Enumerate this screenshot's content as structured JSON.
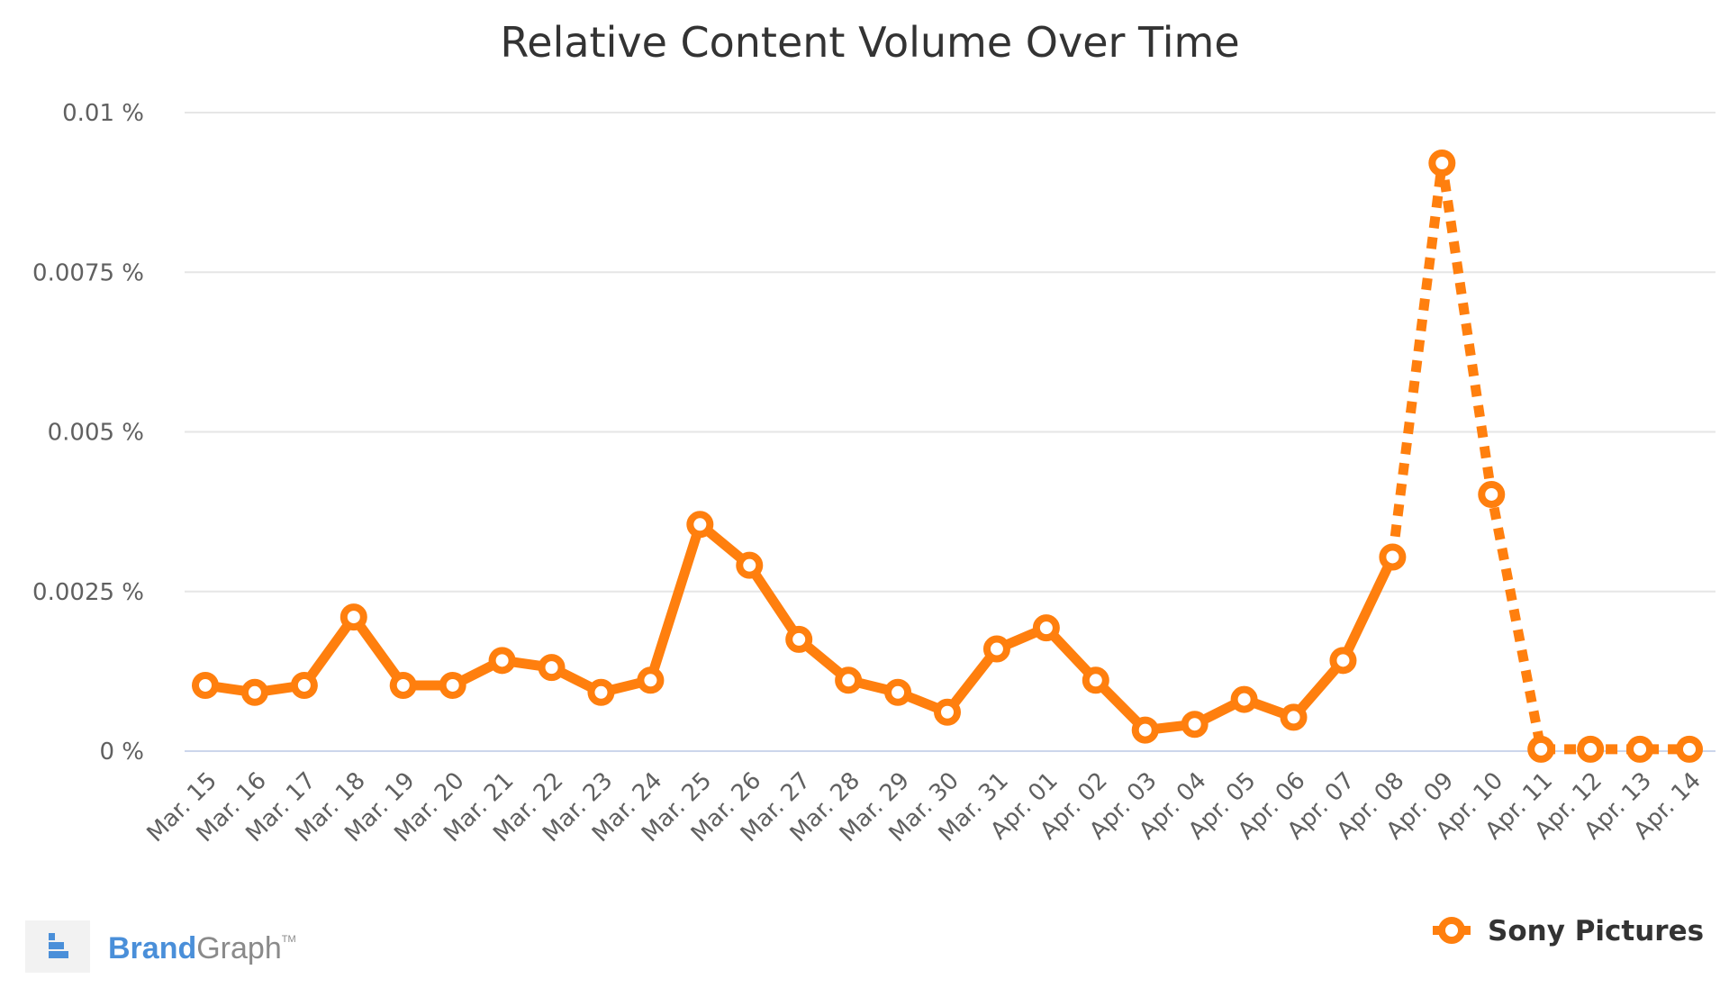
{
  "chart_data": {
    "type": "line",
    "title": "Relative Content Volume Over Time",
    "xlabel": "",
    "ylabel": "",
    "categories": [
      "Mar. 15",
      "Mar. 16",
      "Mar. 17",
      "Mar. 18",
      "Mar. 19",
      "Mar. 20",
      "Mar. 21",
      "Mar. 22",
      "Mar. 23",
      "Mar. 24",
      "Mar. 25",
      "Mar. 26",
      "Mar. 27",
      "Mar. 28",
      "Mar. 29",
      "Mar. 30",
      "Mar. 31",
      "Apr. 01",
      "Apr. 02",
      "Apr. 03",
      "Apr. 04",
      "Apr. 05",
      "Apr. 06",
      "Apr. 07",
      "Apr. 08",
      "Apr. 09",
      "Apr. 10",
      "Apr. 11",
      "Apr. 12",
      "Apr. 13",
      "Apr. 14"
    ],
    "series": [
      {
        "name": "Sony Pictures",
        "color": "#ff7f0e",
        "values": [
          0.00103,
          0.00092,
          0.00103,
          0.0021,
          0.00103,
          0.00103,
          0.00142,
          0.00131,
          0.00092,
          0.00111,
          0.00355,
          0.00291,
          0.00175,
          0.00111,
          0.00092,
          0.00061,
          0.0016,
          0.00193,
          0.00111,
          0.00033,
          0.00042,
          0.00081,
          0.00053,
          0.00142,
          0.00304,
          0.00921,
          0.00402,
          3e-05,
          3e-05,
          3e-05,
          3e-05
        ],
        "dashed_from_category": "Apr. 08"
      }
    ],
    "ylim": [
      0,
      0.01
    ],
    "y_ticks": [
      {
        "value": 0,
        "label": "0 %"
      },
      {
        "value": 0.0025,
        "label": "0.0025 %"
      },
      {
        "value": 0.005,
        "label": "0.005 %"
      },
      {
        "value": 0.0075,
        "label": "0.0075 %"
      },
      {
        "value": 0.01,
        "label": "0.01 %"
      }
    ],
    "grid": true,
    "legend": {
      "position": "bottom-right",
      "label": "Sony Pictures"
    }
  },
  "brand": {
    "part1": "Brand",
    "part2": "Graph",
    "tm": "TM",
    "color_part1": "#4a8fd9",
    "color_part2": "#8a8a8a",
    "icon": "brandgraph-logo-icon"
  }
}
